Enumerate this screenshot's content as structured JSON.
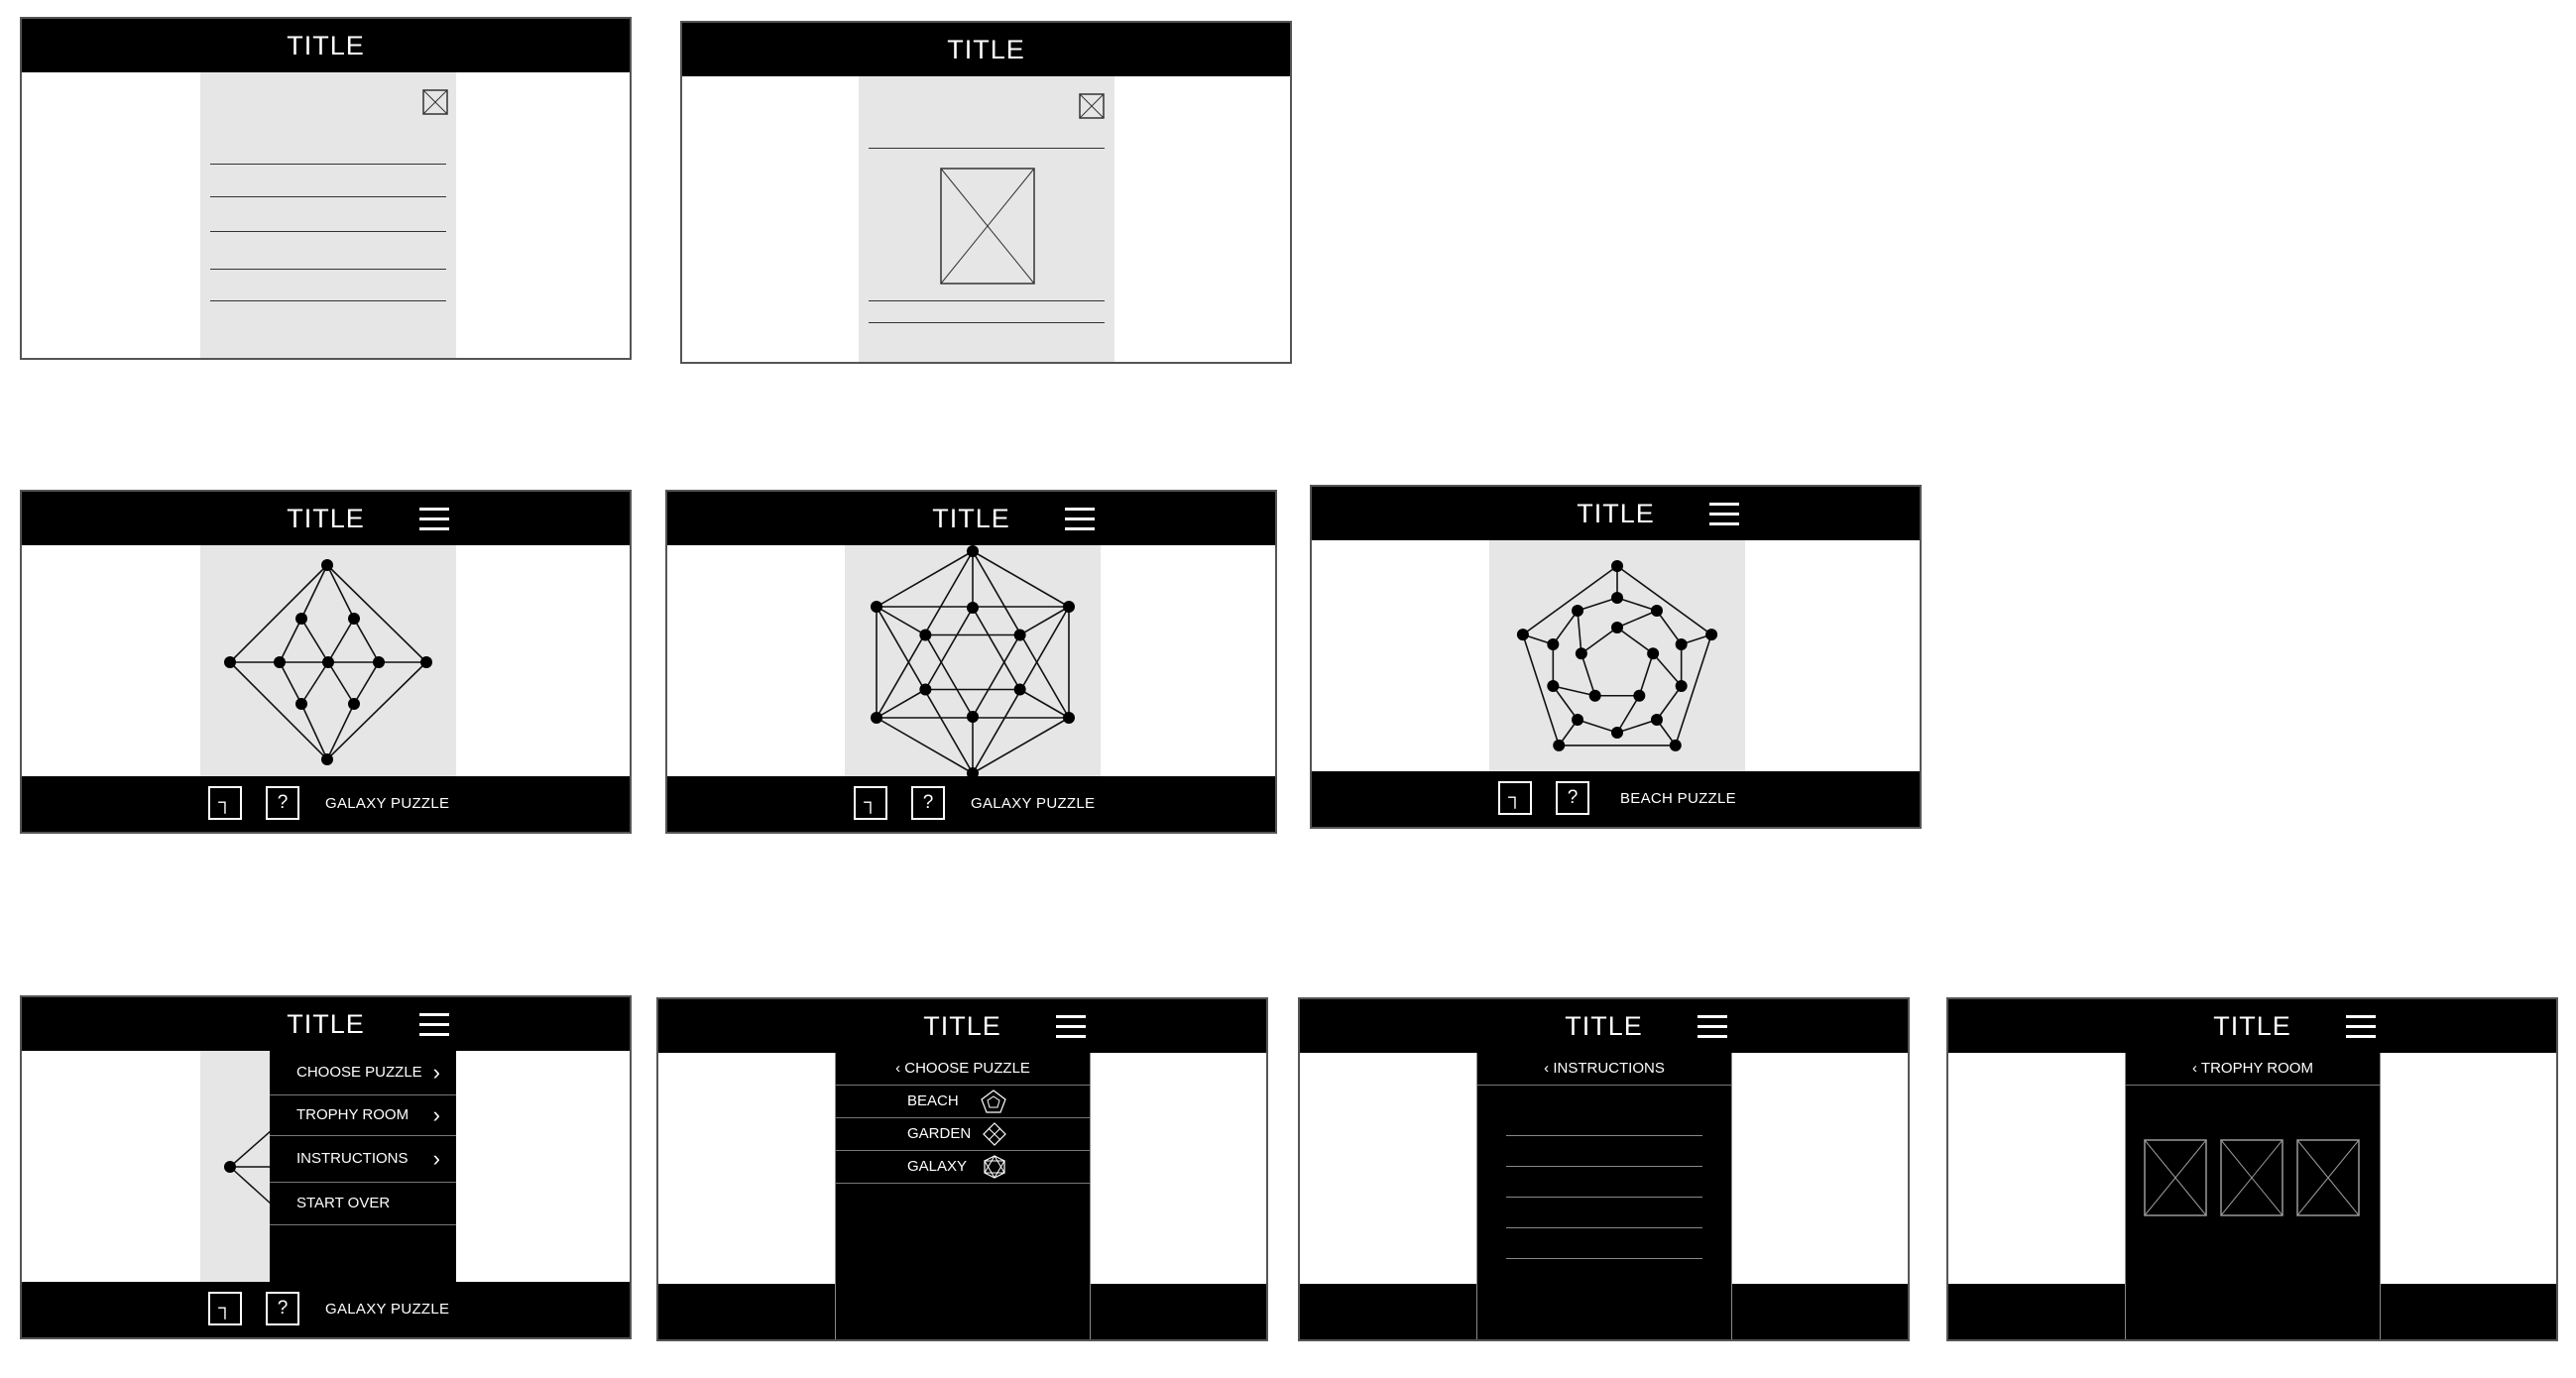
{
  "screens": {
    "s1": {
      "title": "TITLE"
    },
    "s2": {
      "title": "TITLE"
    },
    "s3": {
      "title": "TITLE",
      "puzzle": "GALAXY PUZZLE",
      "undo_icon": "┐",
      "help_icon": "?"
    },
    "s4": {
      "title": "TITLE",
      "puzzle": "GALAXY PUZZLE",
      "undo_icon": "┐",
      "help_icon": "?"
    },
    "s5": {
      "title": "TITLE",
      "puzzle": "BEACH PUZZLE",
      "undo_icon": "┐",
      "help_icon": "?"
    },
    "s6": {
      "title": "TITLE",
      "puzzle": "GALAXY PUZZLE",
      "undo_icon": "┐",
      "help_icon": "?",
      "menu": [
        "CHOOSE PUZZLE",
        "TROPHY ROOM",
        "INSTRUCTIONS",
        "START OVER"
      ]
    },
    "s7": {
      "title": "TITLE",
      "panel_title": "CHOOSE PUZZLE",
      "items": [
        "BEACH",
        "GARDEN",
        "GALAXY"
      ]
    },
    "s8": {
      "title": "TITLE",
      "panel_title": "INSTRUCTIONS"
    },
    "s9": {
      "title": "TITLE",
      "panel_title": "TROPHY ROOM"
    }
  },
  "icons": {
    "back": "chevron-left-icon",
    "forward": "chevron-right-icon",
    "menu": "hamburger-icon",
    "close": "close-icon",
    "undo": "undo-icon",
    "help": "help-icon"
  },
  "colors": {
    "bar": "#000000",
    "panel": "#e6e6e6",
    "line": "#333333"
  }
}
